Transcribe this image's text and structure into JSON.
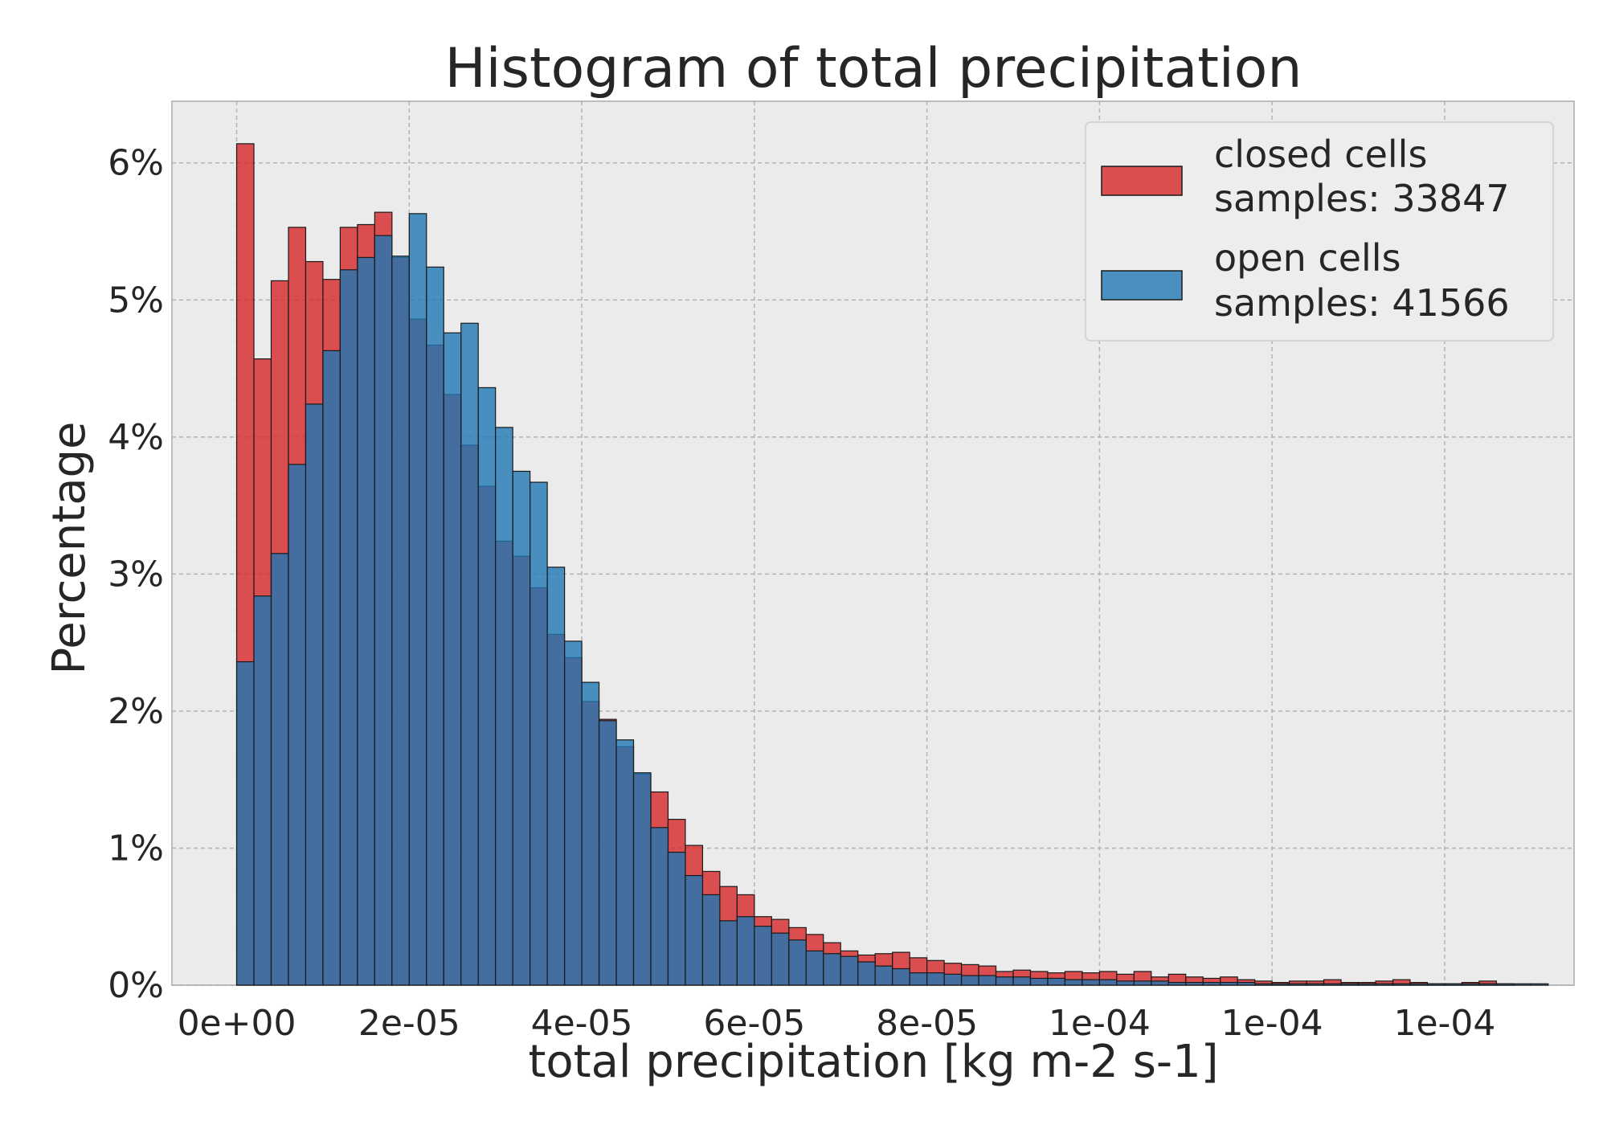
{
  "chart_data": {
    "type": "bar",
    "title": "Histogram of total precipitation",
    "xlabel": "total precipitation [kg m-2 s-1]",
    "ylabel": "Percentage",
    "x_tick_labels": [
      "0e+00",
      "2e-05",
      "4e-05",
      "6e-05",
      "8e-05",
      "1e-04",
      "1e-04",
      "1e-04"
    ],
    "x_tick_values": [
      0,
      2e-05,
      4e-05,
      6e-05,
      8e-05,
      0.0001,
      0.00012,
      0.00014
    ],
    "y_tick_labels": [
      "0%",
      "1%",
      "2%",
      "3%",
      "4%",
      "5%",
      "6%"
    ],
    "y_tick_values": [
      0,
      1,
      2,
      3,
      4,
      5,
      6
    ],
    "xlim": [
      -7.5e-06,
      0.000155
    ],
    "ylim": [
      0,
      6.45
    ],
    "bin_start": 0,
    "bin_width": 2e-06,
    "grid": true,
    "legend_position": "top-right",
    "series": [
      {
        "name": "closed cells",
        "legend_label": "closed cells",
        "legend_samples": "samples: 33847",
        "color": "#d62728",
        "values": [
          6.14,
          4.57,
          5.14,
          5.53,
          5.28,
          5.15,
          5.53,
          5.55,
          5.64,
          5.31,
          4.86,
          4.67,
          4.31,
          3.94,
          3.64,
          3.24,
          3.13,
          2.9,
          2.56,
          2.39,
          2.07,
          1.94,
          1.74,
          1.54,
          1.41,
          1.21,
          1.02,
          0.83,
          0.72,
          0.66,
          0.5,
          0.48,
          0.42,
          0.37,
          0.31,
          0.25,
          0.22,
          0.23,
          0.24,
          0.2,
          0.18,
          0.16,
          0.15,
          0.14,
          0.1,
          0.11,
          0.1,
          0.09,
          0.1,
          0.09,
          0.1,
          0.08,
          0.1,
          0.06,
          0.08,
          0.06,
          0.05,
          0.06,
          0.04,
          0.03,
          0.02,
          0.03,
          0.03,
          0.04,
          0.02,
          0.02,
          0.03,
          0.04,
          0.02,
          0.01,
          0.01,
          0.02,
          0.03,
          0.01,
          0,
          0
        ]
      },
      {
        "name": "open cells",
        "legend_label": "open cells",
        "legend_samples": "samples: 41566",
        "color": "#1f77b4",
        "values": [
          2.36,
          2.84,
          3.15,
          3.8,
          4.24,
          4.63,
          5.22,
          5.31,
          5.47,
          5.32,
          5.63,
          5.24,
          4.76,
          4.83,
          4.36,
          4.07,
          3.75,
          3.67,
          3.05,
          2.51,
          2.21,
          1.93,
          1.79,
          1.55,
          1.15,
          0.97,
          0.8,
          0.66,
          0.47,
          0.5,
          0.43,
          0.38,
          0.33,
          0.25,
          0.23,
          0.21,
          0.17,
          0.14,
          0.12,
          0.09,
          0.09,
          0.08,
          0.07,
          0.07,
          0.06,
          0.06,
          0.05,
          0.05,
          0.04,
          0.04,
          0.04,
          0.03,
          0.03,
          0.03,
          0.02,
          0.02,
          0.02,
          0.02,
          0.02,
          0.01,
          0.01,
          0.01,
          0.01,
          0.01,
          0.01,
          0.01,
          0.01,
          0.01,
          0.01,
          0.01,
          0.01,
          0.01,
          0.01,
          0.01,
          0.01,
          0.01
        ]
      }
    ]
  }
}
